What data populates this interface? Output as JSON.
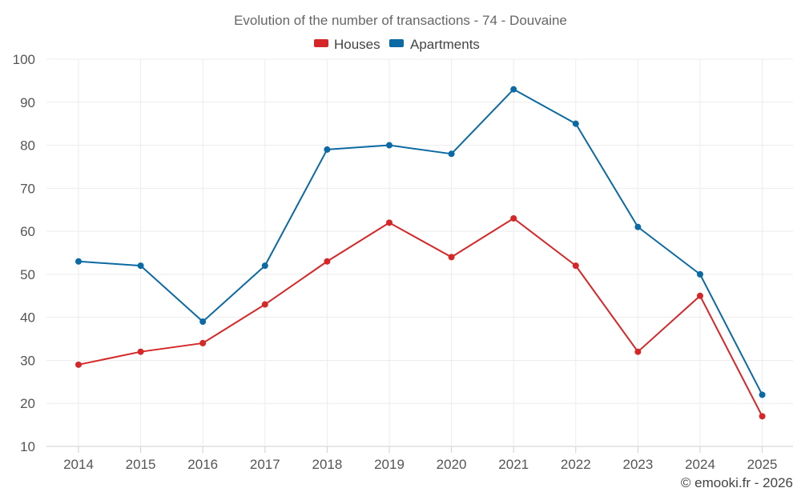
{
  "chart_data": {
    "type": "line",
    "title": "Evolution of the number of transactions - 74 - Douvaine",
    "categories": [
      "2014",
      "2015",
      "2016",
      "2017",
      "2018",
      "2019",
      "2020",
      "2021",
      "2022",
      "2023",
      "2024",
      "2025"
    ],
    "series": [
      {
        "name": "Houses",
        "color": "#d62728",
        "values": [
          29,
          32,
          34,
          43,
          53,
          62,
          54,
          63,
          52,
          32,
          45,
          17
        ]
      },
      {
        "name": "Apartments",
        "color": "#0b69a3",
        "values": [
          53,
          52,
          39,
          52,
          79,
          80,
          78,
          93,
          85,
          61,
          50,
          22
        ]
      }
    ],
    "ylim": [
      10,
      100
    ],
    "yticks": [
      10,
      20,
      30,
      40,
      50,
      60,
      70,
      80,
      90,
      100
    ],
    "legend_position": "top-center",
    "grid": true,
    "xlabel": "",
    "ylabel": ""
  },
  "credit": "© emooki.fr - 2026"
}
